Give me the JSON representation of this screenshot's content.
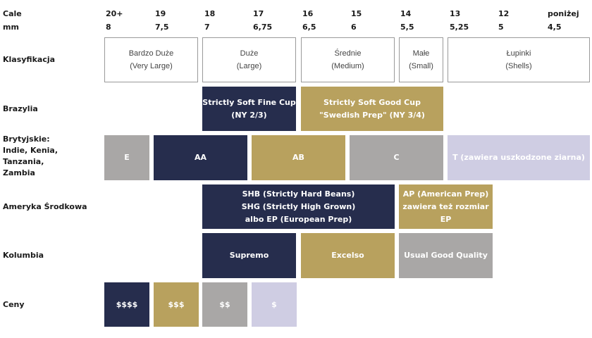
{
  "header": {
    "cale_label": "Cale",
    "mm_label": "mm",
    "columns": [
      {
        "cale": "20+",
        "mm": "8"
      },
      {
        "cale": "19",
        "mm": "7,5"
      },
      {
        "cale": "18",
        "mm": "7"
      },
      {
        "cale": "17",
        "mm": "6,75"
      },
      {
        "cale": "16",
        "mm": "6,5"
      },
      {
        "cale": "15",
        "mm": "6"
      },
      {
        "cale": "14",
        "mm": "5,5"
      },
      {
        "cale": "13",
        "mm": "5,25"
      },
      {
        "cale": "12",
        "mm": "5"
      },
      {
        "cale": "poniżej",
        "mm": "4,5"
      }
    ]
  },
  "rows": {
    "klasyfikacja": "Klasyfikacja",
    "brazylia": "Brazylia",
    "brytyjskie": [
      "Brytyjskie:",
      "Indie, Kenia,",
      "Tanzania,",
      "Zambia"
    ],
    "ameryka": "Ameryka Środkowa",
    "kolumbia": "Kolumbia",
    "ceny": "Ceny"
  },
  "classification": [
    {
      "pl": "Bardzo Duże",
      "en": "(Very Large)"
    },
    {
      "pl": "Duże",
      "en": "(Large)"
    },
    {
      "pl": "Średnie",
      "en": "(Medium)"
    },
    {
      "pl": "Małe",
      "en": "(Small)"
    },
    {
      "pl": "Łupinki",
      "en": "(Shells)"
    }
  ],
  "brazylia": [
    {
      "lines": [
        "Strictly Soft Fine Cup",
        "(NY 2/3)"
      ],
      "color": "#262d4d"
    },
    {
      "lines": [
        "Strictly Soft Good Cup",
        "\"Swedish Prep\" (NY 3/4)"
      ],
      "color": "#b8a15e"
    }
  ],
  "brytyjskie": [
    {
      "label": "E",
      "color": "#a9a7a6"
    },
    {
      "label": "AA",
      "color": "#262d4d"
    },
    {
      "label": "AB",
      "color": "#b8a15e"
    },
    {
      "label": "C",
      "color": "#a9a7a6"
    },
    {
      "label": "T (zawiera uszkodzone ziarna)",
      "color": "#cfcde3"
    }
  ],
  "ameryka": [
    {
      "lines": [
        "SHB (Strictly Hard Beans)",
        "SHG (Strictly High Grown)",
        "albo EP (European Prep)"
      ],
      "color": "#262d4d"
    },
    {
      "lines": [
        "AP (American Prep)",
        "zawiera też rozmiar EP"
      ],
      "color": "#b8a15e"
    }
  ],
  "kolumbia": [
    {
      "label": "Supremo",
      "color": "#262d4d"
    },
    {
      "label": "Excelso",
      "color": "#b8a15e"
    },
    {
      "label": "Usual Good Quality",
      "color": "#a9a7a6"
    }
  ],
  "ceny": [
    {
      "label": "$$$$",
      "color": "#262d4d"
    },
    {
      "label": "$$$",
      "color": "#b8a15e"
    },
    {
      "label": "$$",
      "color": "#a9a7a6"
    },
    {
      "label": "$",
      "color": "#cfcde3"
    }
  ]
}
